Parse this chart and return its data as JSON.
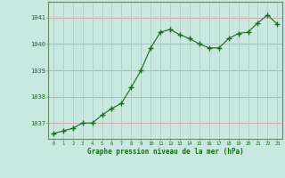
{
  "x": [
    0,
    1,
    2,
    3,
    4,
    5,
    6,
    7,
    8,
    9,
    10,
    11,
    12,
    13,
    14,
    15,
    16,
    17,
    18,
    19,
    20,
    21,
    22,
    23
  ],
  "y": [
    1036.6,
    1036.7,
    1036.8,
    1037.0,
    1037.0,
    1037.3,
    1037.55,
    1037.75,
    1038.35,
    1039.0,
    1039.85,
    1040.45,
    1040.55,
    1040.35,
    1040.2,
    1040.0,
    1039.85,
    1039.85,
    1040.2,
    1040.4,
    1040.45,
    1040.8,
    1041.1,
    1040.75
  ],
  "ylim": [
    1036.4,
    1041.6
  ],
  "yticks": [
    1037,
    1038,
    1039,
    1040,
    1041
  ],
  "xticks": [
    0,
    1,
    2,
    3,
    4,
    5,
    6,
    7,
    8,
    9,
    10,
    11,
    12,
    13,
    14,
    15,
    16,
    17,
    18,
    19,
    20,
    21,
    22,
    23
  ],
  "line_color": "#1a6b1a",
  "marker_color": "#1a6b1a",
  "bg_color": "#c8e8e0",
  "grid_color_h": "#d8a0a0",
  "grid_color_v": "#b0ccc8",
  "xlabel": "Graphe pression niveau de la mer (hPa)",
  "xlabel_color": "#1a6b1a",
  "tick_color": "#1a6b1a",
  "axis_color": "#6a8a6a",
  "figsize": [
    3.2,
    2.0
  ],
  "dpi": 100
}
